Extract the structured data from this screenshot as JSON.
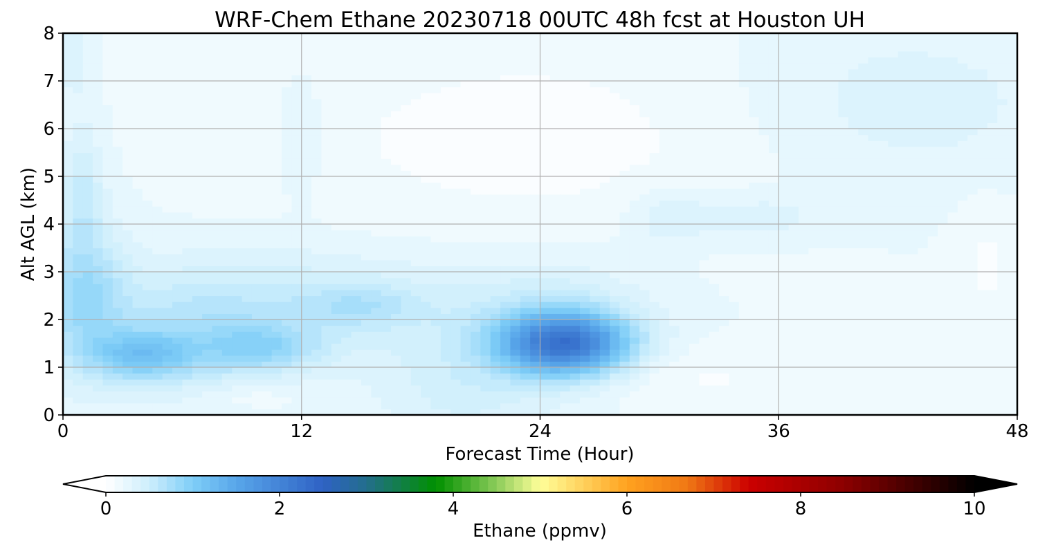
{
  "chart_data": {
    "type": "heatmap",
    "title": "WRF-Chem Ethane  20230718 00UTC 48h fcst at Houston UH",
    "xlabel": "Forecast Time (Hour)",
    "ylabel": "Alt AGL (km)",
    "xlim": [
      0,
      48
    ],
    "ylim": [
      0,
      8
    ],
    "x_ticks": [
      "0",
      "12",
      "24",
      "36",
      "48"
    ],
    "y_ticks": [
      "0",
      "1",
      "2",
      "3",
      "4",
      "5",
      "6",
      "7",
      "8"
    ],
    "grid": true,
    "colorbar": {
      "label": "Ethane  (ppmv)",
      "min": 0,
      "max": 10,
      "ticks": [
        "0",
        "2",
        "4",
        "6",
        "8",
        "10"
      ],
      "extend": "both",
      "stops": [
        {
          "v": 0.0,
          "c": "#ffffff"
        },
        {
          "v": 0.5,
          "c": "#cdeefc"
        },
        {
          "v": 1.0,
          "c": "#7fcef7"
        },
        {
          "v": 1.5,
          "c": "#58a6ea"
        },
        {
          "v": 2.5,
          "c": "#2f62c4"
        },
        {
          "v": 3.0,
          "c": "#236e8c"
        },
        {
          "v": 3.8,
          "c": "#009000"
        },
        {
          "v": 4.5,
          "c": "#8ccc5a"
        },
        {
          "v": 5.0,
          "c": "#ffff99"
        },
        {
          "v": 6.0,
          "c": "#ffa21f"
        },
        {
          "v": 6.7,
          "c": "#f07814"
        },
        {
          "v": 7.4,
          "c": "#cc0000"
        },
        {
          "v": 8.5,
          "c": "#8c0000"
        },
        {
          "v": 10.0,
          "c": "#000000"
        }
      ]
    },
    "field": {
      "description_units": "ppmv",
      "background": 0.2,
      "features": [
        {
          "t": 0.5,
          "z": 7.5,
          "st": 0.6,
          "sz": 0.6,
          "a": 0.18
        },
        {
          "t": 1.0,
          "z": 2.5,
          "st": 1.5,
          "sz": 1.1,
          "a": 0.55
        },
        {
          "t": 1.0,
          "z": 4.8,
          "st": 0.7,
          "sz": 0.9,
          "a": 0.3
        },
        {
          "t": 4.0,
          "z": 1.25,
          "st": 1.8,
          "sz": 0.35,
          "a": 0.7
        },
        {
          "t": 6.0,
          "z": 1.6,
          "st": 3.0,
          "sz": 0.9,
          "a": 0.3
        },
        {
          "t": 10.0,
          "z": 1.4,
          "st": 2.0,
          "sz": 0.35,
          "a": 0.5
        },
        {
          "t": 12.0,
          "z": 2.3,
          "st": 6.0,
          "sz": 0.8,
          "a": 0.32
        },
        {
          "t": 15.0,
          "z": 2.3,
          "st": 2.0,
          "sz": 0.3,
          "a": 0.25
        },
        {
          "t": 12.0,
          "z": 5.8,
          "st": 0.8,
          "sz": 0.9,
          "a": 0.15
        },
        {
          "t": 25.2,
          "z": 1.5,
          "st": 2.2,
          "sz": 0.45,
          "a": 1.85
        },
        {
          "t": 24.5,
          "z": 1.9,
          "st": 3.5,
          "sz": 0.9,
          "a": 0.3
        },
        {
          "t": 30.5,
          "z": 4.15,
          "st": 1.6,
          "sz": 0.45,
          "a": 0.2
        },
        {
          "t": 35.0,
          "z": 4.15,
          "st": 2.2,
          "sz": 0.35,
          "a": 0.18
        },
        {
          "t": 42.0,
          "z": 6.5,
          "st": 6.0,
          "sz": 1.3,
          "a": 0.16
        },
        {
          "t": 20.0,
          "z": 0.5,
          "st": 3.0,
          "sz": 0.8,
          "a": 0.22
        }
      ],
      "low_regions": [
        {
          "t": 24.0,
          "z": 5.8,
          "st": 10.0,
          "sz": 1.6,
          "a": 0.14
        },
        {
          "t": 31.0,
          "z": 0.8,
          "st": 5.0,
          "sz": 0.5,
          "a": 0.12
        },
        {
          "t": 46.5,
          "z": 3.2,
          "st": 1.2,
          "sz": 1.0,
          "a": 0.12
        },
        {
          "t": 9.0,
          "z": 0.4,
          "st": 2.0,
          "sz": 0.2,
          "a": 0.1
        }
      ]
    }
  }
}
